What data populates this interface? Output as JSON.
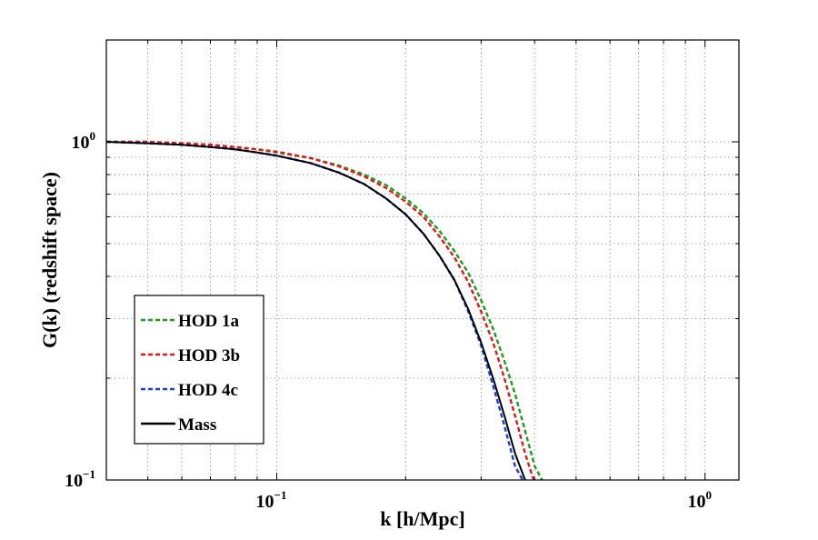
{
  "chart_data": {
    "type": "line",
    "title": "",
    "xlabel": "k [h/Mpc]",
    "ylabel": "G(k) (redshift space)",
    "xscale": "log",
    "yscale": "log",
    "xlim": [
      0.04,
      1.2
    ],
    "ylim": [
      0.1,
      2.0
    ],
    "grid": true,
    "legend_position": "lower-left",
    "x_ticks": [
      {
        "value": 0.1,
        "base": "10",
        "exp": "−1"
      },
      {
        "value": 1.0,
        "base": "10",
        "exp": "0"
      }
    ],
    "y_ticks": [
      {
        "value": 0.1,
        "base": "10",
        "exp": "−1"
      },
      {
        "value": 1.0,
        "base": "10",
        "exp": "0"
      }
    ],
    "series": [
      {
        "name": "HOD 1a",
        "color": "#1a9e1a",
        "dash": "dashed",
        "k": [
          0.04,
          0.05,
          0.06,
          0.07,
          0.08,
          0.09,
          0.1,
          0.12,
          0.14,
          0.16,
          0.18,
          0.2,
          0.22,
          0.24,
          0.26,
          0.28,
          0.3,
          0.32,
          0.34,
          0.36,
          0.38,
          0.4,
          0.42
        ],
        "values": [
          1.0,
          1.0,
          0.99,
          0.98,
          0.965,
          0.95,
          0.93,
          0.895,
          0.85,
          0.8,
          0.745,
          0.68,
          0.615,
          0.545,
          0.475,
          0.41,
          0.34,
          0.28,
          0.225,
          0.18,
          0.14,
          0.11,
          0.098
        ]
      },
      {
        "name": "HOD 3b",
        "color": "#e01818",
        "dash": "dashed",
        "k": [
          0.04,
          0.05,
          0.06,
          0.07,
          0.08,
          0.09,
          0.1,
          0.12,
          0.14,
          0.16,
          0.18,
          0.2,
          0.22,
          0.24,
          0.26,
          0.28,
          0.3,
          0.32,
          0.34,
          0.36,
          0.38,
          0.4
        ],
        "values": [
          1.0,
          1.0,
          0.99,
          0.98,
          0.965,
          0.95,
          0.935,
          0.895,
          0.845,
          0.79,
          0.73,
          0.665,
          0.6,
          0.525,
          0.455,
          0.385,
          0.315,
          0.255,
          0.2,
          0.155,
          0.12,
          0.098
        ]
      },
      {
        "name": "HOD 4c",
        "color": "#1a3ee0",
        "dash": "dashed",
        "k": [
          0.04,
          0.05,
          0.06,
          0.07,
          0.08,
          0.09,
          0.1,
          0.12,
          0.14,
          0.16,
          0.18,
          0.2,
          0.22,
          0.24,
          0.26,
          0.28,
          0.3,
          0.32,
          0.34,
          0.36,
          0.38
        ],
        "values": [
          1.0,
          0.99,
          0.98,
          0.965,
          0.95,
          0.93,
          0.91,
          0.865,
          0.81,
          0.75,
          0.68,
          0.61,
          0.535,
          0.46,
          0.39,
          0.315,
          0.25,
          0.19,
          0.145,
          0.11,
          0.097
        ]
      },
      {
        "name": "Mass",
        "color": "#000000",
        "dash": "solid",
        "k": [
          0.04,
          0.05,
          0.06,
          0.07,
          0.08,
          0.09,
          0.1,
          0.12,
          0.14,
          0.16,
          0.18,
          0.2,
          0.22,
          0.24,
          0.26,
          0.28,
          0.3,
          0.32,
          0.34,
          0.36,
          0.38,
          0.395
        ],
        "values": [
          1.0,
          0.99,
          0.98,
          0.965,
          0.95,
          0.93,
          0.91,
          0.865,
          0.81,
          0.75,
          0.68,
          0.61,
          0.535,
          0.46,
          0.39,
          0.32,
          0.255,
          0.2,
          0.155,
          0.12,
          0.1,
          0.093
        ]
      }
    ]
  }
}
